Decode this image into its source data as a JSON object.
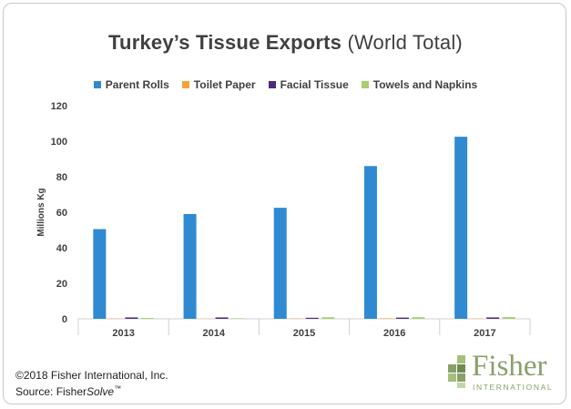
{
  "header": {
    "title_main": "Turkey’s Tissue Exports",
    "title_sub": "(World Total)"
  },
  "chart_data": {
    "type": "bar",
    "categories": [
      "2013",
      "2014",
      "2015",
      "2016",
      "2017"
    ],
    "series": [
      {
        "name": "Parent Rolls",
        "color": "#2f8ad1",
        "values": [
          50.5,
          59,
          62.5,
          86,
          102.5
        ]
      },
      {
        "name": "Toilet Paper",
        "color": "#f3a23a",
        "values": [
          0.2,
          0.1,
          0.2,
          0.3,
          0.2
        ]
      },
      {
        "name": "Facial Tissue",
        "color": "#4b2a7a",
        "values": [
          0.8,
          0.8,
          0.6,
          0.7,
          0.8
        ]
      },
      {
        "name": "Towels and Napkins",
        "color": "#a6cf6d",
        "values": [
          0.5,
          0.3,
          0.9,
          0.9,
          1.0
        ]
      }
    ],
    "ylabel": "Millions Kg",
    "xlabel": "",
    "ylim": [
      0,
      120
    ],
    "yticks": [
      0,
      20,
      40,
      60,
      80,
      100,
      120
    ],
    "grid": false,
    "legend_position": "top"
  },
  "footer": {
    "copyright": "©2018 Fisher International, Inc.",
    "source_prefix": "Source: Fisher",
    "source_italic": "Solve",
    "source_tm": "™"
  },
  "logo": {
    "name": "Fisher",
    "subtitle": "INTERNATIONAL",
    "color": "#8aa06a"
  }
}
